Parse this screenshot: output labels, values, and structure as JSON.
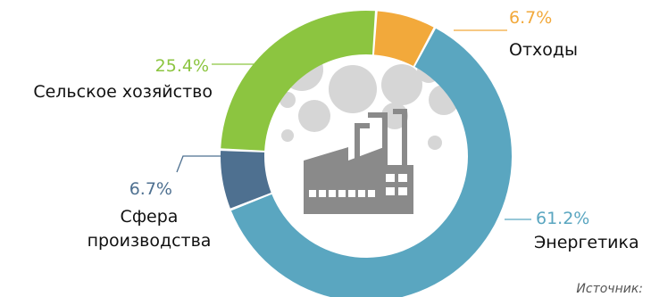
{
  "chart_data": {
    "type": "pie",
    "variant": "donut",
    "title": "",
    "slices": [
      {
        "label": "Отходы",
        "value": 6.7,
        "value_label": "6.7%",
        "color": "#f2a93b"
      },
      {
        "label": "Энергетика",
        "value": 61.2,
        "value_label": "61.2%",
        "color": "#5aa6c0"
      },
      {
        "label": "Сфера производства",
        "label_lines": [
          "Сфера",
          "производства"
        ],
        "value": 6.7,
        "value_label": "6.7%",
        "color": "#4e7090"
      },
      {
        "label": "Сельское хозяйство",
        "value": 25.4,
        "value_label": "25.4%",
        "color": "#8cc540"
      }
    ]
  },
  "source_label": "Источник:",
  "center_icon": "factory-icon"
}
